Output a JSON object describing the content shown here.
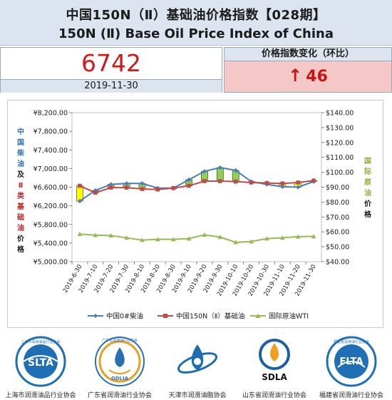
{
  "header": {
    "title_cn": "中国150N（Ⅱ）基础油价格指数【028期】",
    "title_en": "150N (Ⅱ) Base Oil Price Index of China"
  },
  "index": {
    "value": "6742",
    "date": "2019-11-30"
  },
  "change": {
    "title": "价格指数变化（环比）",
    "arrow": "↑",
    "value": "46"
  },
  "chart_data": {
    "type": "line",
    "categories": [
      "2019-6-30",
      "2019-7-10",
      "2019-7-20",
      "2019-7-30",
      "2019-8-10",
      "2019-8-20",
      "2019-8-30",
      "2019-9-10",
      "2019-9-20",
      "2019-9-30",
      "2019-10-10",
      "2019-10-20",
      "2019-10-30",
      "2019-11-10",
      "2019-11-20",
      "2019-11-30"
    ],
    "y_left": {
      "min": 5000,
      "max": 8200,
      "step": 400,
      "tick_labels": [
        "¥5,000.00",
        "¥5,400.00",
        "¥5,800.00",
        "¥6,200.00",
        "¥6,600.00",
        "¥7,000.00",
        "¥7,400.00",
        "¥7,800.00",
        "¥8,200.00"
      ],
      "label_chars_blue": [
        "中",
        "国",
        "柴",
        "油"
      ],
      "label_chars_black1": [
        "及"
      ],
      "label_chars_red": [
        "Ⅱ",
        "类",
        "基",
        "础",
        "油"
      ],
      "label_chars_black2": [
        "价",
        "格"
      ]
    },
    "y_right": {
      "min": 40,
      "max": 140,
      "step": 10,
      "tick_labels": [
        "$40.00",
        "$50.00",
        "$60.00",
        "$70.00",
        "$80.00",
        "$90.00",
        "$100.00",
        "$110.00",
        "$120.00",
        "$130.00",
        "$140.00"
      ],
      "label_chars_green": [
        "国",
        "际",
        "原",
        "油"
      ],
      "label_chars_black": [
        "价",
        "格"
      ]
    },
    "series": [
      {
        "name": "中国0#柴油",
        "axis": "left",
        "color": "#4a7ebb",
        "marker": "diamond",
        "values": [
          6300,
          6530,
          6660,
          6680,
          6680,
          6580,
          6580,
          6760,
          6940,
          7020,
          6960,
          6720,
          6660,
          6610,
          6600,
          6720
        ]
      },
      {
        "name": "中国150N（Ⅱ）基础油",
        "axis": "left",
        "color": "#be4b48",
        "marker": "square",
        "values": [
          6630,
          6480,
          6590,
          6590,
          6560,
          6550,
          6580,
          6630,
          6730,
          6730,
          6720,
          6700,
          6690,
          6680,
          6700,
          6742
        ]
      },
      {
        "name": "国际原油WTI",
        "axis": "right",
        "color": "#98b954",
        "marker": "triangle",
        "values": [
          58.5,
          57.8,
          57.5,
          56.0,
          54.5,
          55.0,
          55.0,
          55.5,
          58.0,
          56.5,
          53.0,
          53.5,
          55.5,
          56.0,
          56.8,
          57.0
        ]
      }
    ],
    "candle_colors": {
      "up": "#92d050",
      "down": "#ffff00",
      "edge": "#333333"
    },
    "legend_position": "bottom"
  },
  "logos": [
    {
      "icon": "slta-logo",
      "abbr": "SLTA",
      "name": "上海市润滑油品行业协会",
      "ring_text": "上海市润滑油品行业协会"
    },
    {
      "icon": "gdlia-logo",
      "abbr": "GDLIA",
      "name": "广东省润滑油行业协会",
      "ring_text": "广东省润滑油行业协会"
    },
    {
      "icon": "tianjin-logo",
      "abbr": "",
      "name": "天津市润滑油脂协会",
      "ring_text": ""
    },
    {
      "icon": "sdla-logo",
      "abbr": "SDLA",
      "name": "山东省润滑油行业协会",
      "ring_text": ""
    },
    {
      "icon": "flta-logo",
      "abbr": "FLTA",
      "name": "福建省润滑油行业协会",
      "ring_text": "福建省润滑油行业协会"
    }
  ]
}
